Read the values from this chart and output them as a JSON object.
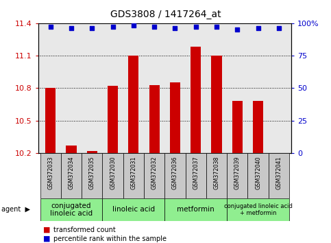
{
  "title": "GDS3808 / 1417264_at",
  "samples": [
    "GSM372033",
    "GSM372034",
    "GSM372035",
    "GSM372030",
    "GSM372031",
    "GSM372032",
    "GSM372036",
    "GSM372037",
    "GSM372038",
    "GSM372039",
    "GSM372040",
    "GSM372041"
  ],
  "bar_values": [
    10.8,
    10.27,
    10.22,
    10.82,
    11.1,
    10.83,
    10.85,
    11.18,
    11.1,
    10.68,
    10.68,
    10.2
  ],
  "percentile_values": [
    97,
    96,
    96,
    97,
    98,
    97,
    96,
    97,
    97,
    95,
    96,
    96
  ],
  "bar_color": "#cc0000",
  "dot_color": "#0000cc",
  "ylim_left": [
    10.2,
    11.4
  ],
  "ylim_right": [
    0,
    100
  ],
  "yticks_left": [
    10.2,
    10.5,
    10.8,
    11.1,
    11.4
  ],
  "yticks_right": [
    0,
    25,
    50,
    75,
    100
  ],
  "ytick_labels_left": [
    "10.2",
    "10.5",
    "10.8",
    "11.1",
    "11.4"
  ],
  "ytick_labels_right": [
    "0",
    "25",
    "50",
    "75",
    "100%"
  ],
  "agent_groups": [
    {
      "label": "conjugated\nlinoleic acid",
      "start": 0,
      "end": 3,
      "color": "#90ee90"
    },
    {
      "label": "linoleic acid",
      "start": 3,
      "end": 6,
      "color": "#90ee90"
    },
    {
      "label": "metformin",
      "start": 6,
      "end": 9,
      "color": "#90ee90"
    },
    {
      "label": "conjugated linoleic acid\n+ metformin",
      "start": 9,
      "end": 12,
      "color": "#90ee90"
    }
  ],
  "legend_items": [
    {
      "label": "transformed count",
      "color": "#cc0000"
    },
    {
      "label": "percentile rank within the sample",
      "color": "#0000cc"
    }
  ],
  "bar_width": 0.5,
  "bar_color_str": "#cc0000",
  "dot_color_str": "#0000cc",
  "background_plot": "#e8e8e8",
  "background_fig": "#ffffff",
  "grid_color": "#000000",
  "agent_label": "agent",
  "sample_box_color": "#c8c8c8",
  "group_fontsizes": [
    7.5,
    7.5,
    7.5,
    6.0
  ]
}
